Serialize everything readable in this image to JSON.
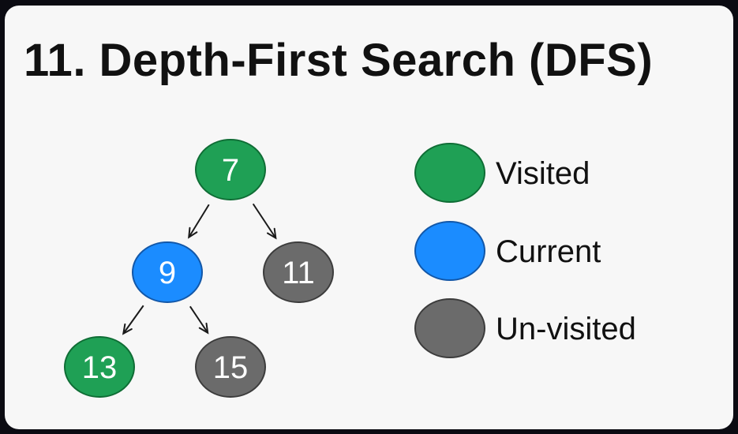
{
  "title": "11. Depth-First Search (DFS)",
  "colors": {
    "visited": "#1fa055",
    "visited_stroke": "#0f6d35",
    "current": "#1b8cff",
    "current_stroke": "#1257a8",
    "unvisited": "#6b6b6b",
    "unvisited_stroke": "#3c3c3c"
  },
  "tree": {
    "nodes": [
      {
        "id": "n7",
        "label": "7",
        "state": "visited"
      },
      {
        "id": "n9",
        "label": "9",
        "state": "current"
      },
      {
        "id": "n11",
        "label": "11",
        "state": "unvisited"
      },
      {
        "id": "n13",
        "label": "13",
        "state": "visited"
      },
      {
        "id": "n15",
        "label": "15",
        "state": "unvisited"
      }
    ],
    "edges": [
      {
        "from": "n7",
        "to": "n9"
      },
      {
        "from": "n7",
        "to": "n11"
      },
      {
        "from": "n9",
        "to": "n13"
      },
      {
        "from": "n9",
        "to": "n15"
      }
    ]
  },
  "legend": [
    {
      "state": "visited",
      "label": "Visited"
    },
    {
      "state": "current",
      "label": "Current"
    },
    {
      "state": "unvisited",
      "label": "Un-visited"
    }
  ]
}
